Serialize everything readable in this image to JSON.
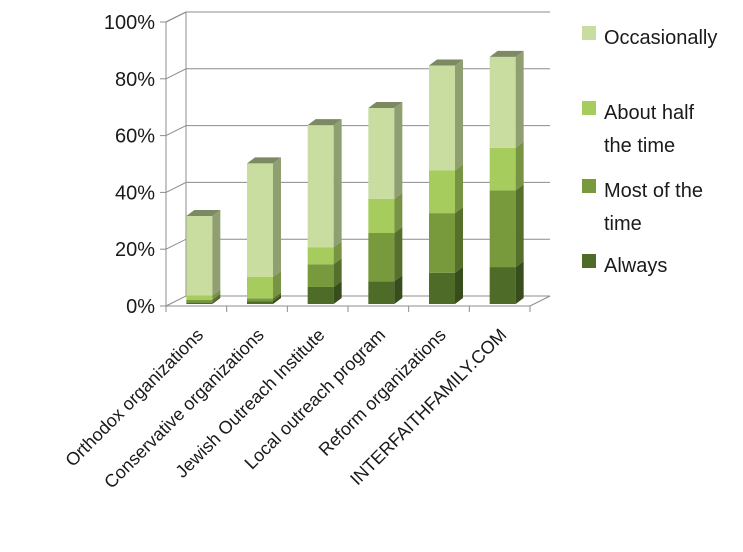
{
  "chart_data": {
    "type": "bar",
    "stacked": true,
    "three_d": true,
    "categories": [
      "Orthodox organizations",
      "Conservative organizations",
      "Jewish Outreach Institute",
      "Local outreach program",
      "Reform organizations",
      "INTERFAITHFAMILY.COM"
    ],
    "series": [
      {
        "name": "Always",
        "values": [
          0.5,
          1,
          6,
          8,
          11,
          13
        ],
        "color": "#4e6b27"
      },
      {
        "name": "Most of the time",
        "values": [
          1,
          1,
          8,
          17,
          21,
          27
        ],
        "color": "#789a3c"
      },
      {
        "name": "About half the time",
        "values": [
          1.5,
          7.5,
          6,
          12,
          15,
          15
        ],
        "color": "#a6cc5d"
      },
      {
        "name": "Occasionally",
        "values": [
          28,
          40,
          43,
          32,
          37,
          32
        ],
        "color": "#c8dd9f"
      }
    ],
    "yticks": [
      "0%",
      "20%",
      "40%",
      "60%",
      "80%",
      "100%"
    ],
    "ylim": [
      0,
      100
    ],
    "grid": true,
    "legend": {
      "position": "right",
      "order": [
        "Occasionally",
        "About half the time",
        "Most of the time",
        "Always"
      ],
      "lines": [
        [
          "Occasionally"
        ],
        [
          "About half",
          "the time"
        ],
        [
          "Most of the",
          "time"
        ],
        [
          "Always"
        ]
      ]
    },
    "title": "",
    "xlabel": "",
    "ylabel": ""
  }
}
